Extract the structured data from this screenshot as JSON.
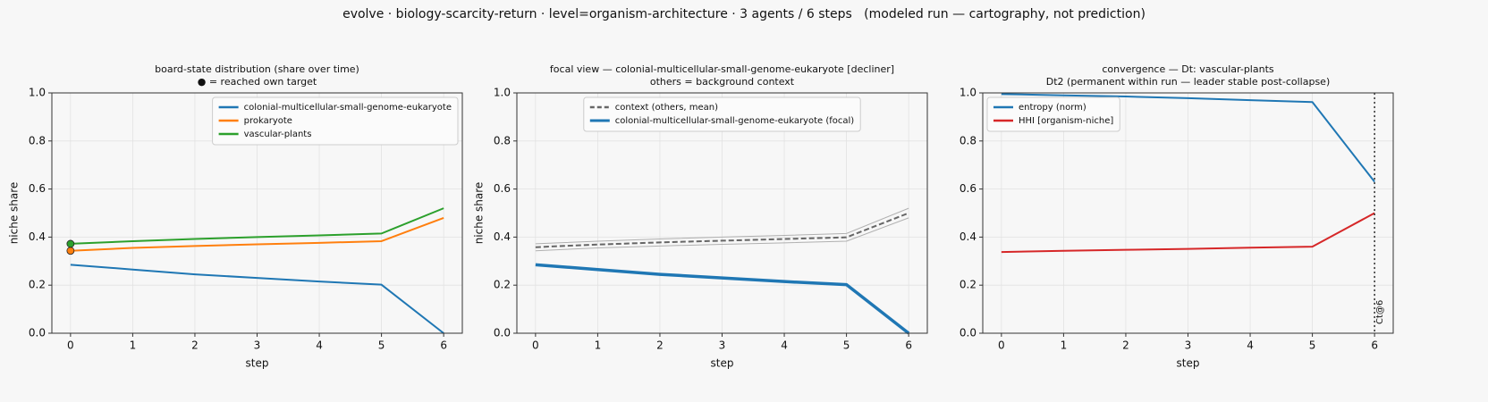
{
  "title": "evolve · biology-scarcity-return · level=organism-architecture · 3 agents / 6 steps   (modeled run — cartography, not prediction)",
  "chart_data": [
    {
      "type": "line",
      "title": [
        "board-state distribution (share over time)",
        "● = reached own target"
      ],
      "x_label": "step",
      "y_label": "niche share",
      "x": [
        0,
        1,
        2,
        3,
        4,
        5,
        6
      ],
      "xlim": [
        -0.3,
        6.3
      ],
      "xticks": [
        0,
        1,
        2,
        3,
        4,
        5,
        6
      ],
      "ylim": [
        0,
        1
      ],
      "yticks": [
        {
          "value": 0,
          "label": "0.0"
        },
        {
          "value": 0.2,
          "label": "0.2"
        },
        {
          "value": 0.4,
          "label": "0.4"
        },
        {
          "value": 0.6,
          "label": "0.6"
        },
        {
          "value": 0.8,
          "label": "0.8"
        },
        {
          "value": 1,
          "label": "1.0"
        }
      ],
      "grid": true,
      "legend": "upper right",
      "series": [
        {
          "name": "colonial-multicellular-small-genome-eukaryote",
          "color": "#1f77b4",
          "width": 2,
          "values": [
            0.285,
            0.265,
            0.245,
            0.23,
            0.215,
            0.202,
            0.0
          ]
        },
        {
          "name": "prokaryote",
          "color": "#ff7f0e",
          "width": 2,
          "values": [
            0.343,
            0.355,
            0.363,
            0.37,
            0.376,
            0.383,
            0.48
          ],
          "marked_steps": [
            0
          ]
        },
        {
          "name": "vascular-plants",
          "color": "#2ca02c",
          "width": 2,
          "values": [
            0.372,
            0.383,
            0.392,
            0.4,
            0.407,
            0.415,
            0.52
          ],
          "marked_steps": [
            0
          ]
        }
      ]
    },
    {
      "type": "line",
      "title": [
        "focal view — colonial-multicellular-small-genome-eukaryote  [decliner]",
        "others = background context"
      ],
      "x_label": "step",
      "y_label": "niche share",
      "x": [
        0,
        1,
        2,
        3,
        4,
        5,
        6
      ],
      "xlim": [
        -0.3,
        6.3
      ],
      "xticks": [
        0,
        1,
        2,
        3,
        4,
        5,
        6
      ],
      "ylim": [
        0,
        1
      ],
      "yticks": [
        {
          "value": 0,
          "label": "0.0"
        },
        {
          "value": 0.2,
          "label": "0.2"
        },
        {
          "value": 0.4,
          "label": "0.4"
        },
        {
          "value": 0.6,
          "label": "0.6"
        },
        {
          "value": 0.8,
          "label": "0.8"
        },
        {
          "value": 1,
          "label": "1.0"
        }
      ],
      "grid": true,
      "legend": "upper center",
      "series": [
        {
          "color": "#b0b0b0",
          "width": 1,
          "values": [
            0.343,
            0.355,
            0.363,
            0.37,
            0.376,
            0.383,
            0.48
          ]
        },
        {
          "color": "#b0b0b0",
          "width": 1,
          "values": [
            0.372,
            0.383,
            0.392,
            0.4,
            0.407,
            0.415,
            0.52
          ]
        },
        {
          "name": "context (others, mean)",
          "color": "#666666",
          "width": 2,
          "dash": true,
          "values": [
            0.358,
            0.369,
            0.378,
            0.385,
            0.392,
            0.399,
            0.5
          ]
        },
        {
          "name": "colonial-multicellular-small-genome-eukaryote (focal)",
          "color": "#1f77b4",
          "width": 3.5,
          "values": [
            0.285,
            0.265,
            0.245,
            0.23,
            0.215,
            0.202,
            0.0
          ]
        }
      ]
    },
    {
      "type": "line",
      "title": [
        "convergence — Dt: vascular-plants",
        "Dt2 (permanent within run — leader stable post-collapse)"
      ],
      "x_label": "step",
      "x": [
        0,
        1,
        2,
        3,
        4,
        5,
        6
      ],
      "xlim": [
        -0.3,
        6.3
      ],
      "xticks": [
        0,
        1,
        2,
        3,
        4,
        5,
        6
      ],
      "ylim": [
        0,
        1
      ],
      "yticks": [
        {
          "value": 0,
          "label": "0.0"
        },
        {
          "value": 0.2,
          "label": "0.2"
        },
        {
          "value": 0.4,
          "label": "0.4"
        },
        {
          "value": 0.6,
          "label": "0.6"
        },
        {
          "value": 0.8,
          "label": "0.8"
        },
        {
          "value": 1,
          "label": "1.0"
        }
      ],
      "grid": true,
      "legend": "upper left",
      "vlines": [
        {
          "x": 6,
          "label": "Ct@6"
        }
      ],
      "series": [
        {
          "name": "entropy (norm)",
          "color": "#1f77b4",
          "width": 2,
          "values": [
            0.995,
            0.99,
            0.985,
            0.978,
            0.97,
            0.962,
            0.63
          ]
        },
        {
          "name": "HHI [organism-niche]",
          "color": "#d62728",
          "width": 2,
          "values": [
            0.338,
            0.343,
            0.347,
            0.351,
            0.356,
            0.36,
            0.5
          ]
        }
      ]
    }
  ]
}
